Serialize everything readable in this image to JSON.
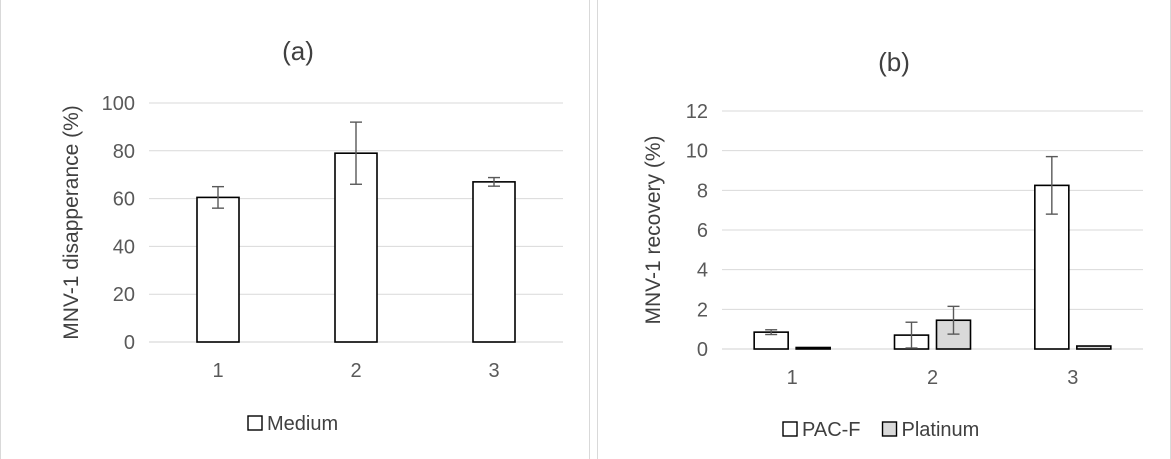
{
  "chart_data": [
    {
      "type": "bar",
      "title": "(a)",
      "xlabel": "",
      "ylabel": "MNV-1 disapperance (%)",
      "categories": [
        "1",
        "2",
        "3"
      ],
      "ylim": [
        0,
        100
      ],
      "yticks": [
        0,
        20,
        40,
        60,
        80,
        100
      ],
      "grid": true,
      "legend_position": "bottom",
      "series": [
        {
          "name": "Medium",
          "color": "#ffffff",
          "values": [
            60.5,
            79,
            67
          ],
          "errors": [
            4.5,
            13,
            1.8
          ]
        }
      ]
    },
    {
      "type": "bar",
      "title": "(b)",
      "xlabel": "",
      "ylabel": "MNV-1 recovery (%)",
      "categories": [
        "1",
        "2",
        "3"
      ],
      "ylim": [
        0,
        12
      ],
      "yticks": [
        0,
        2,
        4,
        6,
        8,
        10,
        12
      ],
      "grid": true,
      "legend_position": "bottom",
      "series": [
        {
          "name": "PAC-F",
          "color": "#ffffff",
          "values": [
            0.85,
            0.7,
            8.25
          ],
          "errors": [
            0.12,
            0.65,
            1.45
          ]
        },
        {
          "name": "Platinum",
          "color": "#d9d9d9",
          "values": [
            0.03,
            1.45,
            0.15
          ],
          "errors": [
            0,
            0.7,
            0
          ]
        }
      ]
    }
  ]
}
